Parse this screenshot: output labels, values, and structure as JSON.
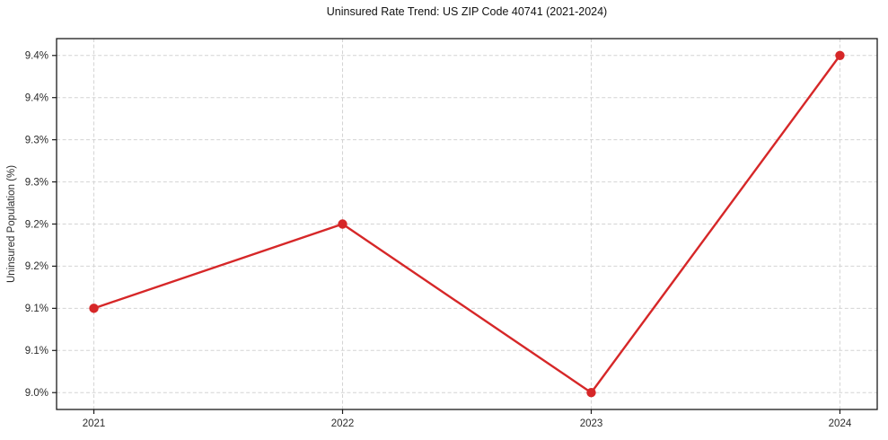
{
  "chart_data": {
    "type": "line",
    "title": "Uninsured Rate Trend: US ZIP Code 40741 (2021-2024)",
    "xlabel": "",
    "ylabel": "Uninsured Population (%)",
    "x": [
      2021,
      2022,
      2023,
      2024
    ],
    "values": [
      9.1,
      9.2,
      9.0,
      9.4
    ],
    "xlim": [
      2020.85,
      2024.15
    ],
    "ylim": [
      8.98,
      9.42
    ],
    "xticks": {
      "values": [
        2021,
        2022,
        2023,
        2024
      ],
      "labels": [
        "2021",
        "2022",
        "2023",
        "2024"
      ]
    },
    "yticks": {
      "values": [
        9.0,
        9.05,
        9.1,
        9.15,
        9.2,
        9.25,
        9.3,
        9.35,
        9.4
      ],
      "labels": [
        "9.0%",
        "9.1%",
        "9.1%",
        "9.2%",
        "9.2%",
        "9.3%",
        "9.3%",
        "9.4%",
        "9.4%"
      ]
    },
    "grid": true,
    "legend": "none",
    "line_color": "#d62728",
    "marker": "circle"
  }
}
